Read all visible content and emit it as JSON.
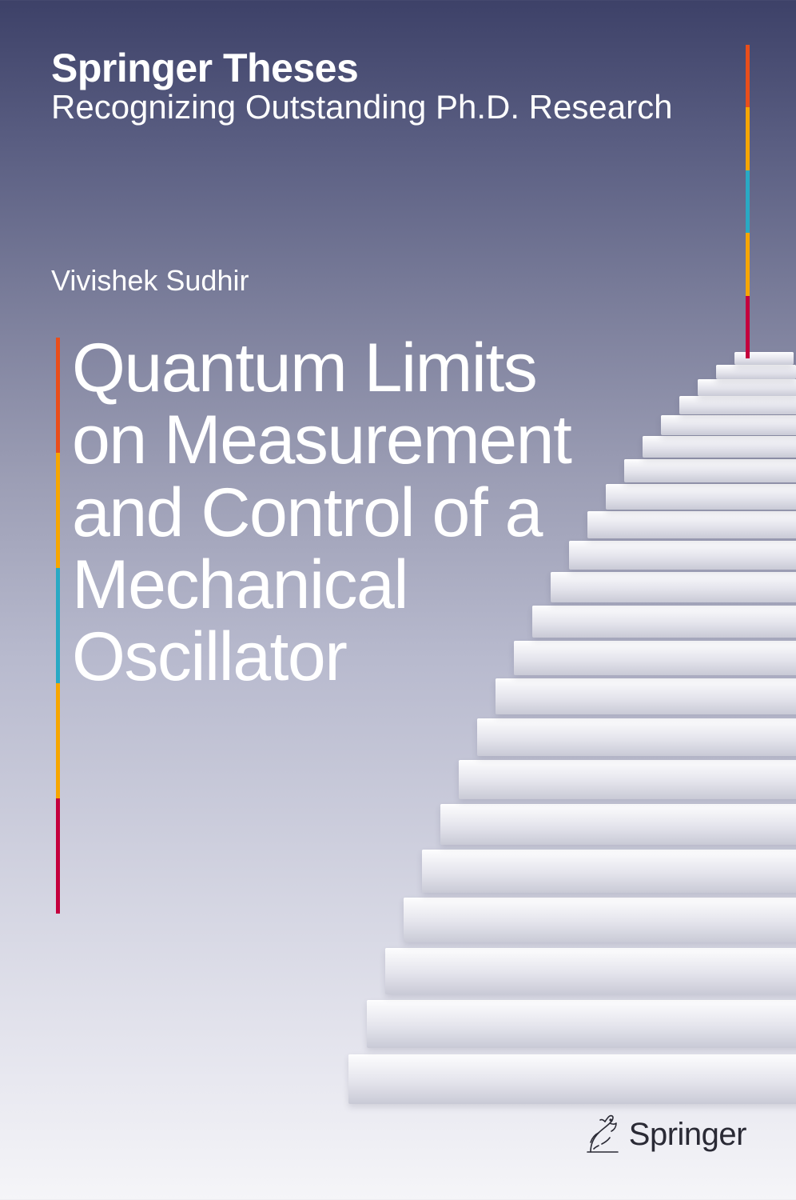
{
  "series": {
    "title": "Springer Theses",
    "subtitle": "Recognizing Outstanding Ph.D. Research"
  },
  "author": "Vivishek Sudhir",
  "title_lines": [
    "Quantum Limits",
    "on Measurement",
    "and Control of a",
    "Mechanical",
    "Oscillator"
  ],
  "publisher": "Springer",
  "colors": {
    "left_bar": [
      "#e94e1b",
      "#f7a600",
      "#29a9c4",
      "#f7a600",
      "#c4003d"
    ],
    "right_bar": [
      "#e94e1b",
      "#f7a600",
      "#29a9c4",
      "#f7a600",
      "#c4003d"
    ],
    "text_white": "#ffffff",
    "publisher_text": "#2a2a35"
  },
  "staircase": {
    "num_steps": 22,
    "base_width": 620,
    "base_height": 62,
    "width_shrink": 26,
    "height_shrink": 2.2,
    "y_spacing_base": 70,
    "y_spacing_shrink": 2.6
  }
}
